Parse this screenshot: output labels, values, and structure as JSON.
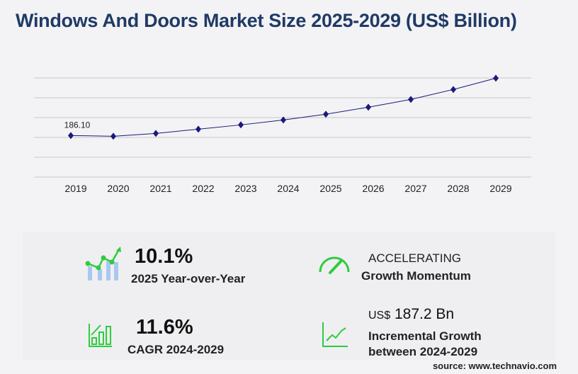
{
  "title": "Windows And Doors Market Size 2025-2029 (US$ Billion)",
  "chart_data": {
    "type": "line",
    "title": "Windows And Doors Market Size 2025-2029 (US$ Billion)",
    "categories": [
      "2019",
      "2020",
      "2021",
      "2022",
      "2023",
      "2024",
      "2025",
      "2026",
      "2027",
      "2028",
      "2029"
    ],
    "values": [
      186.1,
      182.9,
      195.6,
      214.6,
      233.7,
      255.7,
      281.5,
      312.9,
      347.8,
      392.2,
      442.9
    ],
    "data_labels": [
      {
        "category": "2019",
        "text": "186.10"
      }
    ],
    "ylim": [
      0,
      444
    ],
    "grid": true,
    "y_tick_labels": false,
    "line_color": "#1a1a7a",
    "marker": "diamond"
  },
  "stats": {
    "yoy_value": "10.1%",
    "yoy_label": "2025 Year-over-Year",
    "momentum_value": "ACCELERATING",
    "momentum_label": "Growth Momentum",
    "cagr_value": "11.6%",
    "cagr_label": "CAGR 2024-2029",
    "incr_prefix": "US$",
    "incr_value": "187.2 Bn",
    "incr_label1": "Incremental Growth",
    "incr_label2": "between 2024-2029"
  },
  "icons": {
    "yoy": "bar-trend-icon",
    "momentum": "speedometer-icon",
    "cagr": "bar-chart-growth-icon",
    "incr": "line-growth-icon",
    "accent": "#2ecc40"
  },
  "source": "source: www.technavio.com"
}
